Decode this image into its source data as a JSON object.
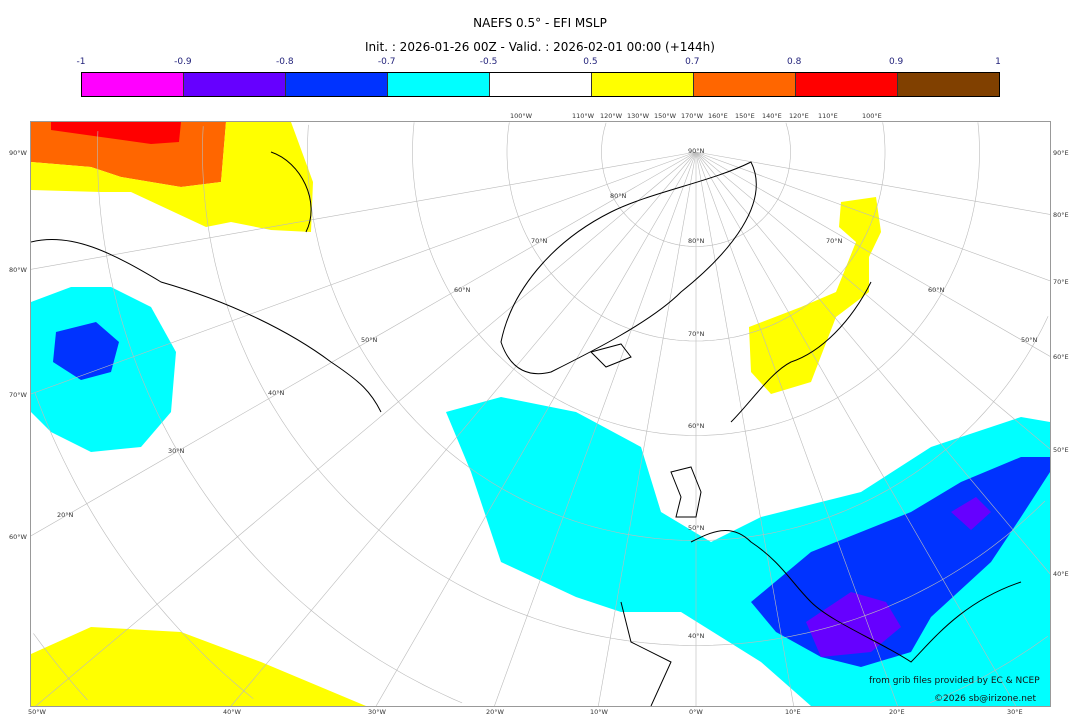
{
  "title": "NAEFS 0.5° - EFI MSLP",
  "subtitle": "Init. : 2026-01-26 00Z - Valid. : 2026-02-01 00:00 (+144h)",
  "colorbar": {
    "ticks": [
      "-1",
      "-0.9",
      "-0.8",
      "-0.7",
      "-0.5",
      "0.5",
      "0.7",
      "0.8",
      "0.9",
      "1"
    ],
    "colors": [
      "#ff00ff",
      "#6600ff",
      "#0033ff",
      "#00ffff",
      "#ffffff",
      "#ffff00",
      "#ff6600",
      "#ff0000",
      "#804000"
    ]
  },
  "map": {
    "top_labels": [
      "100°W",
      "110°W",
      "120°W",
      "130°W",
      "150°W",
      "170°W",
      "160°E",
      "150°E",
      "140°E",
      "120°E",
      "110°E",
      "100°E"
    ],
    "left_labels": [
      "90°W",
      "80°W",
      "70°W",
      "60°W"
    ],
    "right_labels": [
      "90°E",
      "80°E",
      "70°E",
      "60°E",
      "50°E",
      "40°E"
    ],
    "bottom_labels": [
      "50°W",
      "40°W",
      "30°W",
      "20°W",
      "10°W",
      "0°W",
      "10°E",
      "20°E",
      "30°E"
    ],
    "lat_labels": [
      "90°N",
      "80°N",
      "80°N",
      "70°N",
      "70°N",
      "70°N",
      "60°N",
      "60°N",
      "60°N",
      "50°N",
      "50°N",
      "50°N",
      "40°N",
      "40°N",
      "30°N",
      "20°N"
    ],
    "credit_1": "from grib files provided by EC & NCEP",
    "credit_2": "©2026 sb@irizone.net"
  }
}
